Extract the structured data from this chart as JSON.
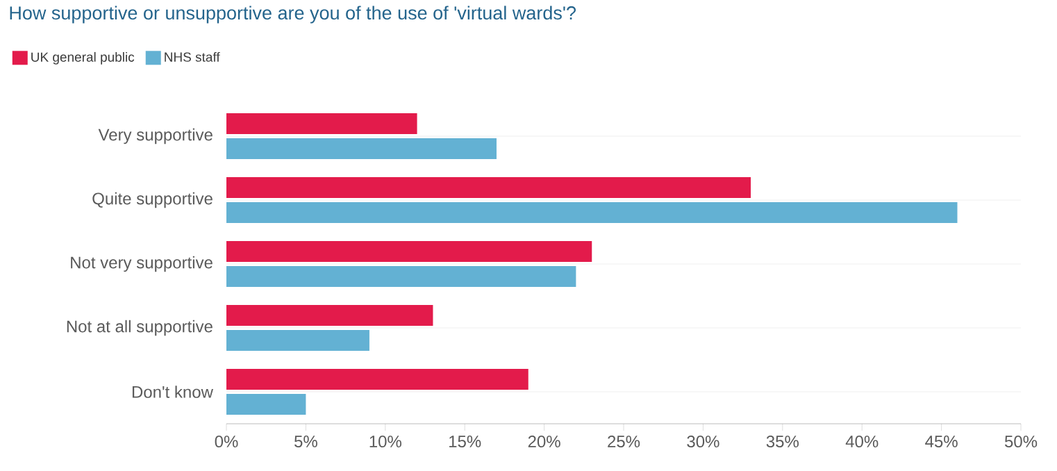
{
  "chart_data": {
    "type": "bar",
    "orientation": "horizontal",
    "title": "How supportive or unsupportive are you of the use of 'virtual wards'?",
    "categories": [
      "Very supportive",
      "Quite supportive",
      "Not very supportive",
      "Not at all supportive",
      "Don't know"
    ],
    "series": [
      {
        "name": "UK general public",
        "color": "#e31b4b",
        "values": [
          12,
          33,
          23,
          13,
          19
        ]
      },
      {
        "name": "NHS staff",
        "color": "#63b1d3",
        "values": [
          17,
          46,
          22,
          9,
          5
        ]
      }
    ],
    "xlim": [
      0,
      50
    ],
    "xticks": [
      {
        "value": 0,
        "label": "0%"
      },
      {
        "value": 5,
        "label": "5%"
      },
      {
        "value": 10,
        "label": "10%"
      },
      {
        "value": 15,
        "label": "15%"
      },
      {
        "value": 20,
        "label": "20%"
      },
      {
        "value": 25,
        "label": "25%"
      },
      {
        "value": 30,
        "label": "30%"
      },
      {
        "value": 35,
        "label": "35%"
      },
      {
        "value": 40,
        "label": "40%"
      },
      {
        "value": 45,
        "label": "45%"
      },
      {
        "value": 50,
        "label": "50%"
      }
    ],
    "grid": "y",
    "legend": "top left"
  }
}
